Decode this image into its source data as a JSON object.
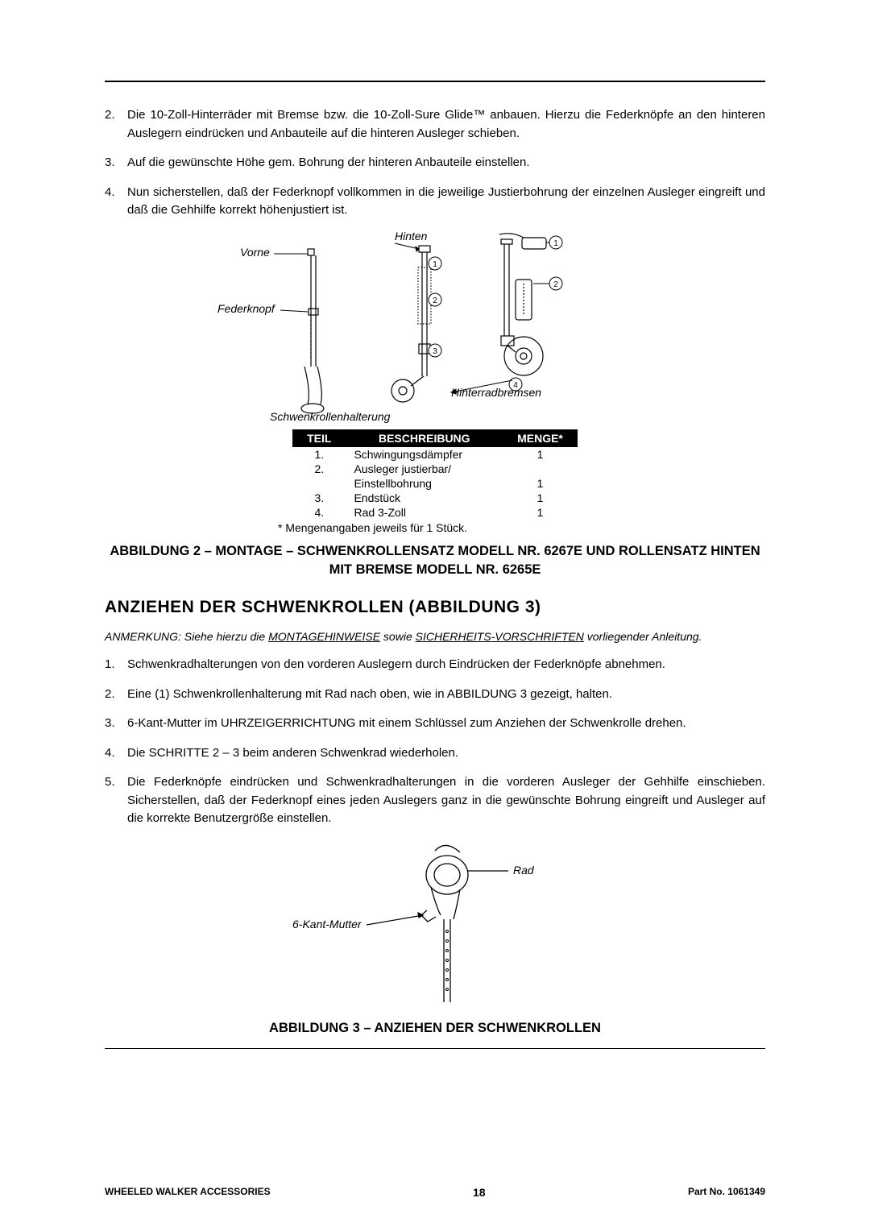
{
  "steps_a": [
    {
      "n": "2.",
      "t": "Die 10-Zoll-Hinterräder mit Bremse bzw. die 10-Zoll-Sure Glide™  anbauen. Hierzu die Federknöpfe an den hinteren Auslegern eindrücken und Anbauteile auf die hinteren Ausleger schieben."
    },
    {
      "n": "3.",
      "t": "Auf die gewünschte Höhe gem. Bohrung der hinteren Anbauteile einstellen."
    },
    {
      "n": "4.",
      "t": "Nun sicherstellen, daß der Federknopf vollkommen in die jeweilige Justierbohrung der einzelnen Ausleger eingreift und daß die Gehhilfe korrekt höhenjustiert ist."
    }
  ],
  "diagram1": {
    "labels": {
      "vorne": "Vorne",
      "hinten": "Hinten",
      "federknopf": "Federknopf",
      "hinterradbremsen": "Hinterradbremsen",
      "schwenkrollenhalterung": "Schwenkrollenhalterung"
    }
  },
  "parts": {
    "headers": [
      "TEIL",
      "BESCHREIBUNG",
      "MENGE*"
    ],
    "rows": [
      [
        "1.",
        "Schwingungsdämpfer",
        "1"
      ],
      [
        "2.",
        "Ausleger justierbar/",
        ""
      ],
      [
        "",
        "Einstellbohrung",
        "1"
      ],
      [
        "3.",
        "Endstück",
        "1"
      ],
      [
        "4.",
        "Rad 3-Zoll",
        "1"
      ]
    ],
    "note": "* Mengenangaben jeweils für 1 Stück."
  },
  "caption2": "ABBILDUNG 2 – MONTAGE – SCHWENKROLLENSATZ MODELL NR. 6267E  UND ROLLENSATZ HINTEN MIT BREMSE MODELL NR. 6265E",
  "section_title": "ANZIEHEN DER SCHWENKROLLEN (ABBILDUNG 3)",
  "anmerkung": {
    "pre": "ANMERKUNG: Siehe hierzu die ",
    "u1": "MONTAGEHINWEISE",
    "mid": " sowie ",
    "u2": "SICHERHEITS-VORSCHRIFTEN",
    "post": " vorliegender Anleitung."
  },
  "steps_b": [
    {
      "n": "1.",
      "t": "Schwenkradhalterungen von den vorderen Auslegern durch Eindrücken der Federknöpfe abnehmen."
    },
    {
      "n": "2.",
      "t": "Eine (1) Schwenkrollenhalterung mit Rad nach oben, wie in ABBILDUNG 3 gezeigt, halten."
    },
    {
      "n": "3.",
      "t": "6-Kant-Mutter im UHRZEIGERRICHTUNG mit einem Schlüssel zum Anziehen der Schwenkrolle drehen."
    },
    {
      "n": "4.",
      "t": "Die SCHRITTE 2 – 3 beim anderen Schwenkrad wiederholen."
    },
    {
      "n": "5.",
      "t": "Die Federknöpfe eindrücken und Schwenkradhalterungen in die vorderen Ausleger der Gehhilfe einschieben. Sicherstellen, daß der Federknopf eines jeden Auslegers ganz in die gewünschte Bohrung eingreift und Ausleger auf die korrekte Benutzergröße einstellen."
    }
  ],
  "diagram2": {
    "labels": {
      "rad": "Rad",
      "mutter": "6-Kant-Mutter"
    }
  },
  "caption3": "ABBILDUNG 3 – ANZIEHEN DER SCHWENKROLLEN",
  "footer": {
    "left": "WHEELED WALKER ACCESSORIES",
    "page": "18",
    "right": "Part No. 1061349"
  }
}
